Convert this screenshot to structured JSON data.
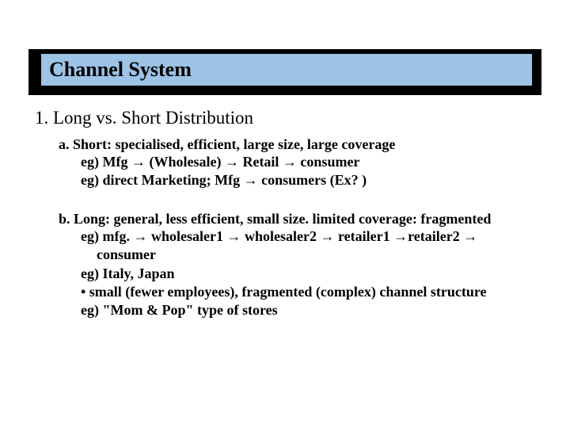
{
  "colors": {
    "title_band_bg": "#000000",
    "title_inner_bg": "#9dc3e6",
    "text": "#000000",
    "background": "#ffffff"
  },
  "title": "Channel System",
  "heading": "1. Long vs. Short Distribution",
  "section_a": {
    "label": "a. Short: specialised, efficient, large size, large coverage",
    "lines": [
      "eg) Mfg → (Wholesale) → Retail → consumer",
      "eg) direct Marketing; Mfg → consumers (Ex? )"
    ]
  },
  "section_b": {
    "label": "b. Long: general, less efficient, small size. limited coverage: fragmented",
    "lines": [
      "eg) mfg. → wholesaler1 → wholesaler2 → retailer1 →retailer2 →",
      "consumer",
      "eg) Italy, Japan",
      "•  small (fewer employees), fragmented (complex) channel structure",
      "eg) \"Mom & Pop\" type of stores"
    ]
  }
}
